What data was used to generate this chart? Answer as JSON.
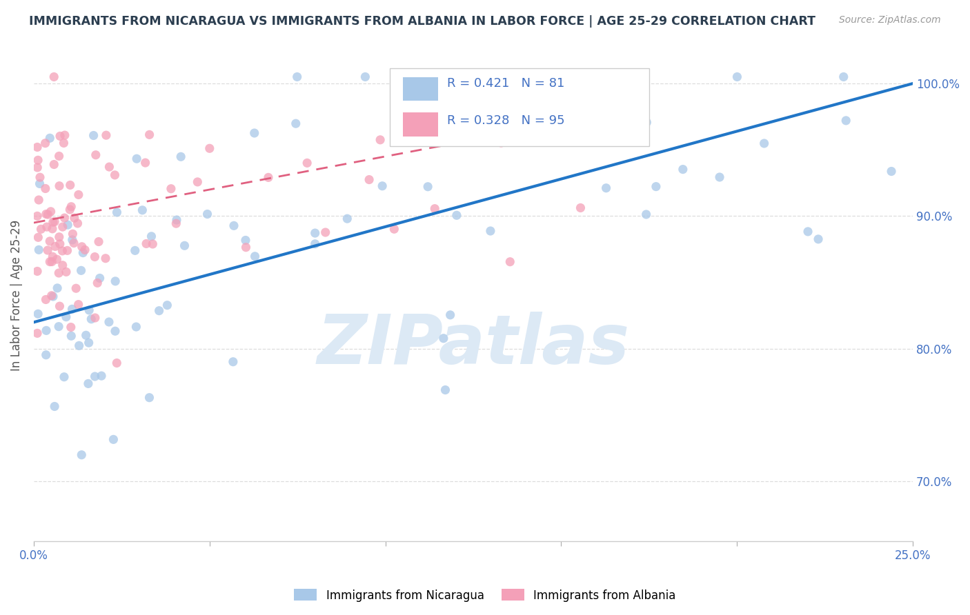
{
  "title": "IMMIGRANTS FROM NICARAGUA VS IMMIGRANTS FROM ALBANIA IN LABOR FORCE | AGE 25-29 CORRELATION CHART",
  "source": "Source: ZipAtlas.com",
  "ylabel": "In Labor Force | Age 25-29",
  "legend_blue": "Immigrants from Nicaragua",
  "legend_pink": "Immigrants from Albania",
  "R_blue": 0.421,
  "N_blue": 81,
  "R_pink": 0.328,
  "N_pink": 95,
  "color_blue": "#a8c8e8",
  "color_pink": "#f4a0b8",
  "color_blue_line": "#2176c7",
  "color_pink_line": "#e06080",
  "watermark_color": "#dce9f5",
  "xlim": [
    0,
    0.25
  ],
  "ylim": [
    0.655,
    1.025
  ],
  "yticks": [
    0.7,
    0.8,
    0.9,
    1.0
  ],
  "ytick_labels": [
    "70.0%",
    "80.0%",
    "90.0%",
    "100.0%"
  ]
}
